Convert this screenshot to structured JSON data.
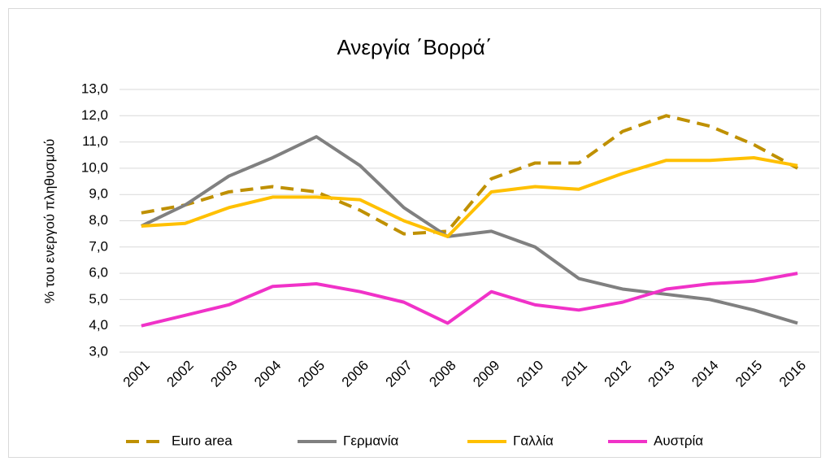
{
  "chart_data": {
    "type": "line",
    "title": "Ανεργία ΄Βορρά΄",
    "y_label": "% του ενεργού πληθυσμού",
    "categories": [
      "2001",
      "2002",
      "2003",
      "2004",
      "2005",
      "2006",
      "2007",
      "2008",
      "2009",
      "2010",
      "2011",
      "2012",
      "2013",
      "2014",
      "2015",
      "2016"
    ],
    "series": [
      {
        "name": "Euro area",
        "color": "#bf9000",
        "dashed": true,
        "values": [
          8.3,
          8.6,
          9.1,
          9.3,
          9.1,
          8.4,
          7.5,
          7.6,
          9.6,
          10.2,
          10.2,
          11.4,
          12.0,
          11.6,
          10.9,
          10.0
        ]
      },
      {
        "name": "Γερμανία",
        "color": "#808080",
        "dashed": false,
        "values": [
          7.8,
          8.6,
          9.7,
          10.4,
          11.2,
          10.1,
          8.5,
          7.4,
          7.6,
          7.0,
          5.8,
          5.4,
          5.2,
          5.0,
          4.6,
          4.1
        ]
      },
      {
        "name": "Γαλλία",
        "color": "#ffc000",
        "dashed": false,
        "values": [
          7.8,
          7.9,
          8.5,
          8.9,
          8.9,
          8.8,
          8.0,
          7.4,
          9.1,
          9.3,
          9.2,
          9.8,
          10.3,
          10.3,
          10.4,
          10.1
        ]
      },
      {
        "name": "Αυστρία",
        "color": "#f032c8",
        "dashed": false,
        "values": [
          4.0,
          4.4,
          4.8,
          5.5,
          5.6,
          5.3,
          4.9,
          4.1,
          5.3,
          4.8,
          4.6,
          4.9,
          5.4,
          5.6,
          5.7,
          6.0
        ]
      }
    ],
    "ylim": [
      3,
      13
    ],
    "yticks": [
      {
        "value": 3,
        "label": "3,0"
      },
      {
        "value": 4,
        "label": "4,0"
      },
      {
        "value": 5,
        "label": "5,0"
      },
      {
        "value": 6,
        "label": "6,0"
      },
      {
        "value": 7,
        "label": "7,0"
      },
      {
        "value": 8,
        "label": "8,0"
      },
      {
        "value": 9,
        "label": "9,0"
      },
      {
        "value": 10,
        "label": "10,0"
      },
      {
        "value": 11,
        "label": "11,0"
      },
      {
        "value": 12,
        "label": "12,0"
      },
      {
        "value": 13,
        "label": "13,0"
      }
    ],
    "grid": true,
    "legend": "bottom"
  }
}
